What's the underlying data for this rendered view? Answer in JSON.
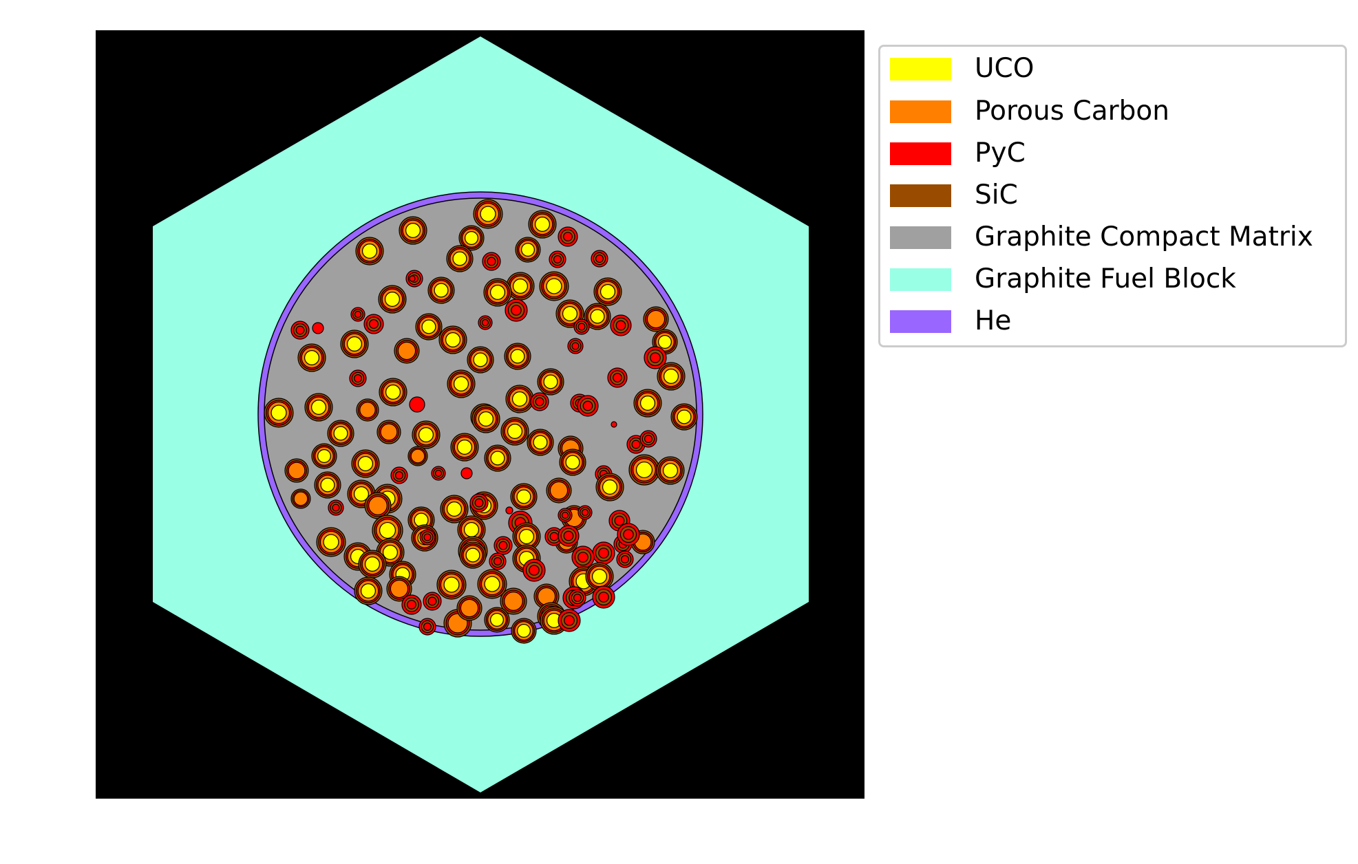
{
  "legend": {
    "items": [
      {
        "label": "UCO",
        "color": "#ffff00"
      },
      {
        "label": "Porous Carbon",
        "color": "#ff7f00"
      },
      {
        "label": "PyC",
        "color": "#ff0000"
      },
      {
        "label": "SiC",
        "color": "#994c00"
      },
      {
        "label": "Graphite Compact Matrix",
        "color": "#a0a0a0"
      },
      {
        "label": "Graphite Fuel Block",
        "color": "#99ffe5"
      },
      {
        "label": "He",
        "color": "#9966ff"
      }
    ]
  },
  "colors": {
    "background": "#000000",
    "uco": "#ffff00",
    "porous_carbon": "#ff7f00",
    "pyc": "#ff0000",
    "sic": "#994c00",
    "matrix": "#a0a0a0",
    "fuel_block": "#99ffe5",
    "helium": "#9966ff"
  }
}
